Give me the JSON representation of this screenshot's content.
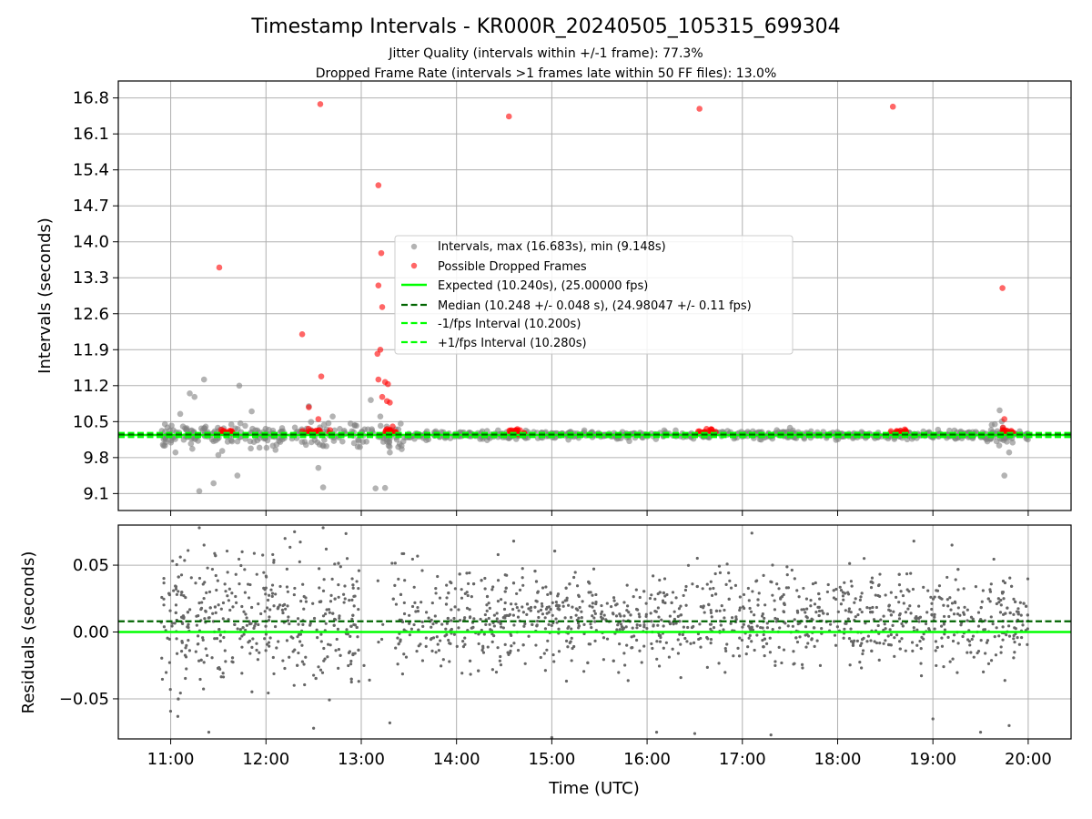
{
  "figure": {
    "title": "Timestamp Intervals - KR000R_20240505_105315_699304",
    "subtitle_1": "Jitter Quality (intervals within +/-1 frame): 77.3%",
    "subtitle_2": "Dropped Frame Rate (intervals >1 frames late within 50 FF files): 13.0%"
  },
  "colors": {
    "intervals": "#808080",
    "dropped": "#ff0000",
    "expected": "#00ff00",
    "median": "#006400",
    "residuals": "#666666",
    "grid": "#b0b0b0"
  },
  "chart_data": [
    {
      "type": "scatter",
      "panel": "intervals",
      "ylabel": "Intervals (seconds)",
      "x_units": "hours UTC",
      "xlim": [
        10.45,
        20.45
      ],
      "ylim": [
        8.77,
        17.13
      ],
      "yticks": [
        9.1,
        9.8,
        10.5,
        11.2,
        11.9,
        12.6,
        13.3,
        14.0,
        14.7,
        15.4,
        16.1,
        16.8
      ],
      "ytick_labels": [
        "9.1",
        "9.8",
        "10.5",
        "11.2",
        "11.9",
        "12.6",
        "13.3",
        "14.0",
        "14.7",
        "15.4",
        "16.1",
        "16.8"
      ],
      "grid": true,
      "legend_position": "center",
      "legend": [
        "Intervals, max (16.683s), min (9.148s)",
        "Possible Dropped Frames",
        "Expected (10.240s), (25.00000 fps)",
        "Median (10.248 +/- 0.048 s), (24.98047 +/- 0.11 fps)",
        "-1/fps Interval (10.200s)",
        "+1/fps Interval (10.280s)"
      ],
      "reference_lines": {
        "expected": 10.24,
        "median": 10.248,
        "minus_1_fps": 10.2,
        "plus_1_fps": 10.28
      },
      "series": [
        {
          "name": "Intervals, max (16.683s), min (9.148s)",
          "points": [
            [
              11.3,
              9.148
            ],
            [
              11.45,
              9.3
            ],
            [
              11.7,
              9.45
            ],
            [
              12.6,
              9.22
            ],
            [
              13.15,
              9.2
            ],
            [
              13.25,
              9.21
            ],
            [
              11.35,
              11.32
            ],
            [
              11.72,
              11.2
            ],
            [
              11.2,
              11.05
            ],
            [
              11.25,
              10.98
            ],
            [
              11.85,
              10.7
            ],
            [
              11.1,
              10.65
            ],
            [
              12.45,
              10.8
            ],
            [
              12.7,
              10.6
            ],
            [
              13.1,
              10.92
            ],
            [
              13.2,
              10.6
            ],
            [
              11.05,
              9.9
            ],
            [
              11.5,
              9.85
            ],
            [
              12.1,
              9.95
            ],
            [
              12.55,
              9.6
            ],
            [
              13.3,
              9.9
            ],
            [
              19.7,
              10.72
            ],
            [
              19.75,
              9.45
            ],
            [
              19.8,
              9.9
            ],
            [
              19.65,
              10.45
            ],
            [
              15.2,
              10.28
            ],
            [
              17.5,
              10.38
            ],
            [
              18.9,
              10.31
            ],
            [
              14.2,
              10.22
            ],
            [
              16.3,
              10.33
            ],
            [
              11.45,
              10.12
            ],
            [
              12.95,
              10.42
            ]
          ],
          "note": "dense band of points around 10.24 s from 10:55 to 20:00; band widens between 11:00 and 13:25"
        },
        {
          "name": "Possible Dropped Frames",
          "points": [
            [
              11.51,
              13.5
            ],
            [
              12.57,
              16.68
            ],
            [
              14.55,
              16.44
            ],
            [
              16.55,
              16.59
            ],
            [
              18.58,
              16.63
            ],
            [
              19.73,
              13.1
            ],
            [
              12.38,
              12.2
            ],
            [
              12.58,
              11.38
            ],
            [
              13.18,
              15.1
            ],
            [
              13.21,
              13.78
            ],
            [
              13.18,
              13.15
            ],
            [
              13.22,
              12.73
            ],
            [
              13.2,
              11.9
            ],
            [
              13.17,
              11.82
            ],
            [
              13.18,
              11.32
            ],
            [
              13.25,
              11.27
            ],
            [
              13.28,
              11.23
            ],
            [
              13.22,
              10.98
            ],
            [
              13.27,
              10.9
            ],
            [
              13.3,
              10.87
            ],
            [
              12.45,
              10.78
            ],
            [
              12.55,
              10.55
            ],
            [
              13.32,
              10.3
            ],
            [
              14.65,
              10.25
            ],
            [
              16.6,
              10.3
            ],
            [
              18.6,
              10.27
            ],
            [
              19.75,
              10.55
            ]
          ],
          "clusters": [
            [
              11.5,
              11.65
            ],
            [
              12.35,
              12.72
            ],
            [
              13.25,
              13.38
            ],
            [
              14.55,
              14.72
            ],
            [
              16.52,
              16.72
            ],
            [
              18.55,
              18.72
            ],
            [
              19.72,
              19.85
            ]
          ]
        }
      ]
    },
    {
      "type": "scatter",
      "panel": "residuals",
      "xlabel": "Time (UTC)",
      "ylabel": "Residuals (seconds)",
      "xlim": [
        10.45,
        20.45
      ],
      "ylim": [
        -0.08,
        0.08
      ],
      "yticks": [
        -0.05,
        0.0,
        0.05
      ],
      "ytick_labels": [
        "−0.05",
        "0.00",
        "0.05"
      ],
      "xticks": [
        11,
        12,
        13,
        14,
        15,
        16,
        17,
        18,
        19,
        20
      ],
      "xtick_labels": [
        "11:00",
        "12:00",
        "13:00",
        "14:00",
        "15:00",
        "16:00",
        "17:00",
        "18:00",
        "19:00",
        "20:00"
      ],
      "grid": true,
      "reference_lines": {
        "zero": 0.0,
        "median_offset": 0.008
      },
      "series": [
        {
          "name": "Residuals",
          "x_range": [
            10.9,
            20.0
          ],
          "typical_spread": 0.03,
          "points": [
            [
              11.3,
              0.078
            ],
            [
              12.3,
              0.075
            ],
            [
              12.6,
              0.078
            ],
            [
              11.35,
              0.065
            ],
            [
              11.75,
              0.06
            ],
            [
              12.2,
              0.07
            ],
            [
              14.6,
              0.068
            ],
            [
              17.1,
              0.074
            ],
            [
              18.8,
              0.068
            ],
            [
              19.2,
              0.065
            ],
            [
              11.4,
              -0.075
            ],
            [
              12.5,
              -0.072
            ],
            [
              13.3,
              -0.068
            ],
            [
              15.0,
              -0.079
            ],
            [
              16.1,
              -0.075
            ],
            [
              16.5,
              -0.076
            ],
            [
              17.3,
              -0.077
            ],
            [
              19.0,
              -0.065
            ],
            [
              19.5,
              -0.075
            ],
            [
              19.8,
              -0.07
            ]
          ]
        }
      ]
    }
  ]
}
